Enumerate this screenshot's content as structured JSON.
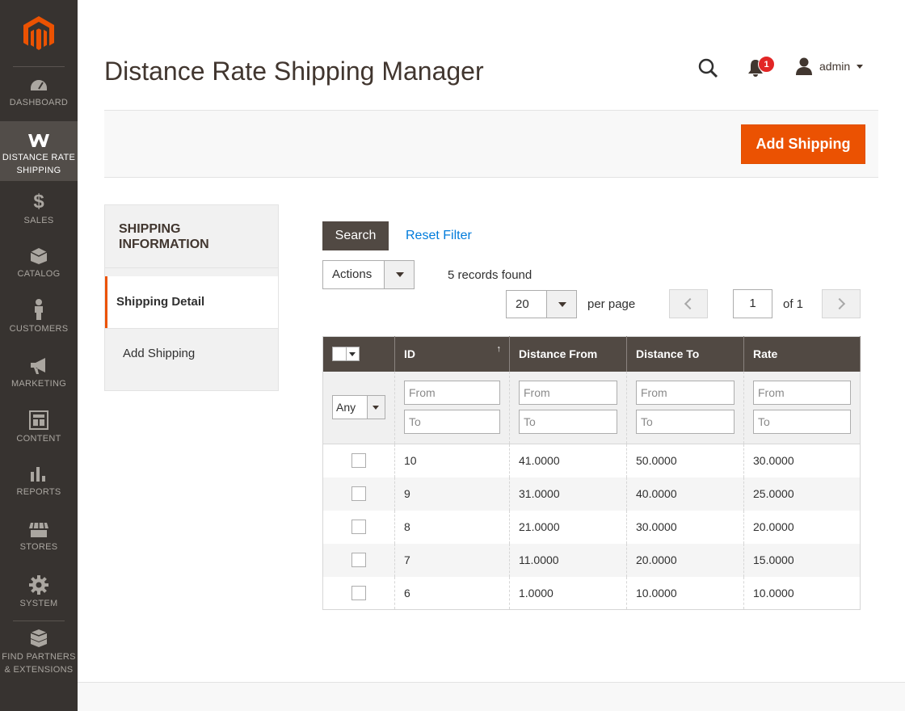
{
  "header": {
    "title": "Distance Rate Shipping Manager",
    "notifications_count": "1",
    "user_name": "admin"
  },
  "sidebar": {
    "items": [
      {
        "label": "DASHBOARD",
        "icon": "dashboard-icon"
      },
      {
        "label": "DISTANCE RATE SHIPPING",
        "icon": "webkul-icon",
        "active": true
      },
      {
        "label": "SALES",
        "icon": "dollar-icon"
      },
      {
        "label": "CATALOG",
        "icon": "box-icon"
      },
      {
        "label": "CUSTOMERS",
        "icon": "person-icon"
      },
      {
        "label": "MARKETING",
        "icon": "megaphone-icon"
      },
      {
        "label": "CONTENT",
        "icon": "layout-icon"
      },
      {
        "label": "REPORTS",
        "icon": "bar-chart-icon"
      },
      {
        "label": "STORES",
        "icon": "storefront-icon"
      },
      {
        "label": "SYSTEM",
        "icon": "gear-icon"
      },
      {
        "label": "FIND PARTNERS & EXTENSIONS",
        "icon": "cubes-icon"
      }
    ]
  },
  "action_bar": {
    "add_shipping_label": "Add Shipping"
  },
  "tabs": {
    "title": "SHIPPING INFORMATION",
    "items": [
      {
        "label": "Shipping Detail",
        "active": true
      },
      {
        "label": "Add Shipping",
        "active": false
      }
    ]
  },
  "grid": {
    "search_label": "Search",
    "reset_label": "Reset Filter",
    "actions_label": "Actions",
    "records_found": "5 records found",
    "per_page_value": "20",
    "per_page_label": "per page",
    "current_page": "1",
    "of_pages": "of 1",
    "columns": [
      "ID",
      "Distance From",
      "Distance To",
      "Rate"
    ],
    "sort_indicator": "↑",
    "filter": {
      "any_label": "Any",
      "from_placeholder": "From",
      "to_placeholder": "To"
    },
    "rows": [
      {
        "id": "10",
        "from": "41.0000",
        "to": "50.0000",
        "rate": "30.0000"
      },
      {
        "id": "9",
        "from": "31.0000",
        "to": "40.0000",
        "rate": "25.0000"
      },
      {
        "id": "8",
        "from": "21.0000",
        "to": "30.0000",
        "rate": "20.0000"
      },
      {
        "id": "7",
        "from": "11.0000",
        "to": "20.0000",
        "rate": "15.0000"
      },
      {
        "id": "6",
        "from": "1.0000",
        "to": "10.0000",
        "rate": "10.0000"
      }
    ]
  },
  "colors": {
    "accent": "#eb5202",
    "sidebar_bg": "#373330",
    "header_row_bg": "#514943",
    "link": "#007bdb"
  }
}
